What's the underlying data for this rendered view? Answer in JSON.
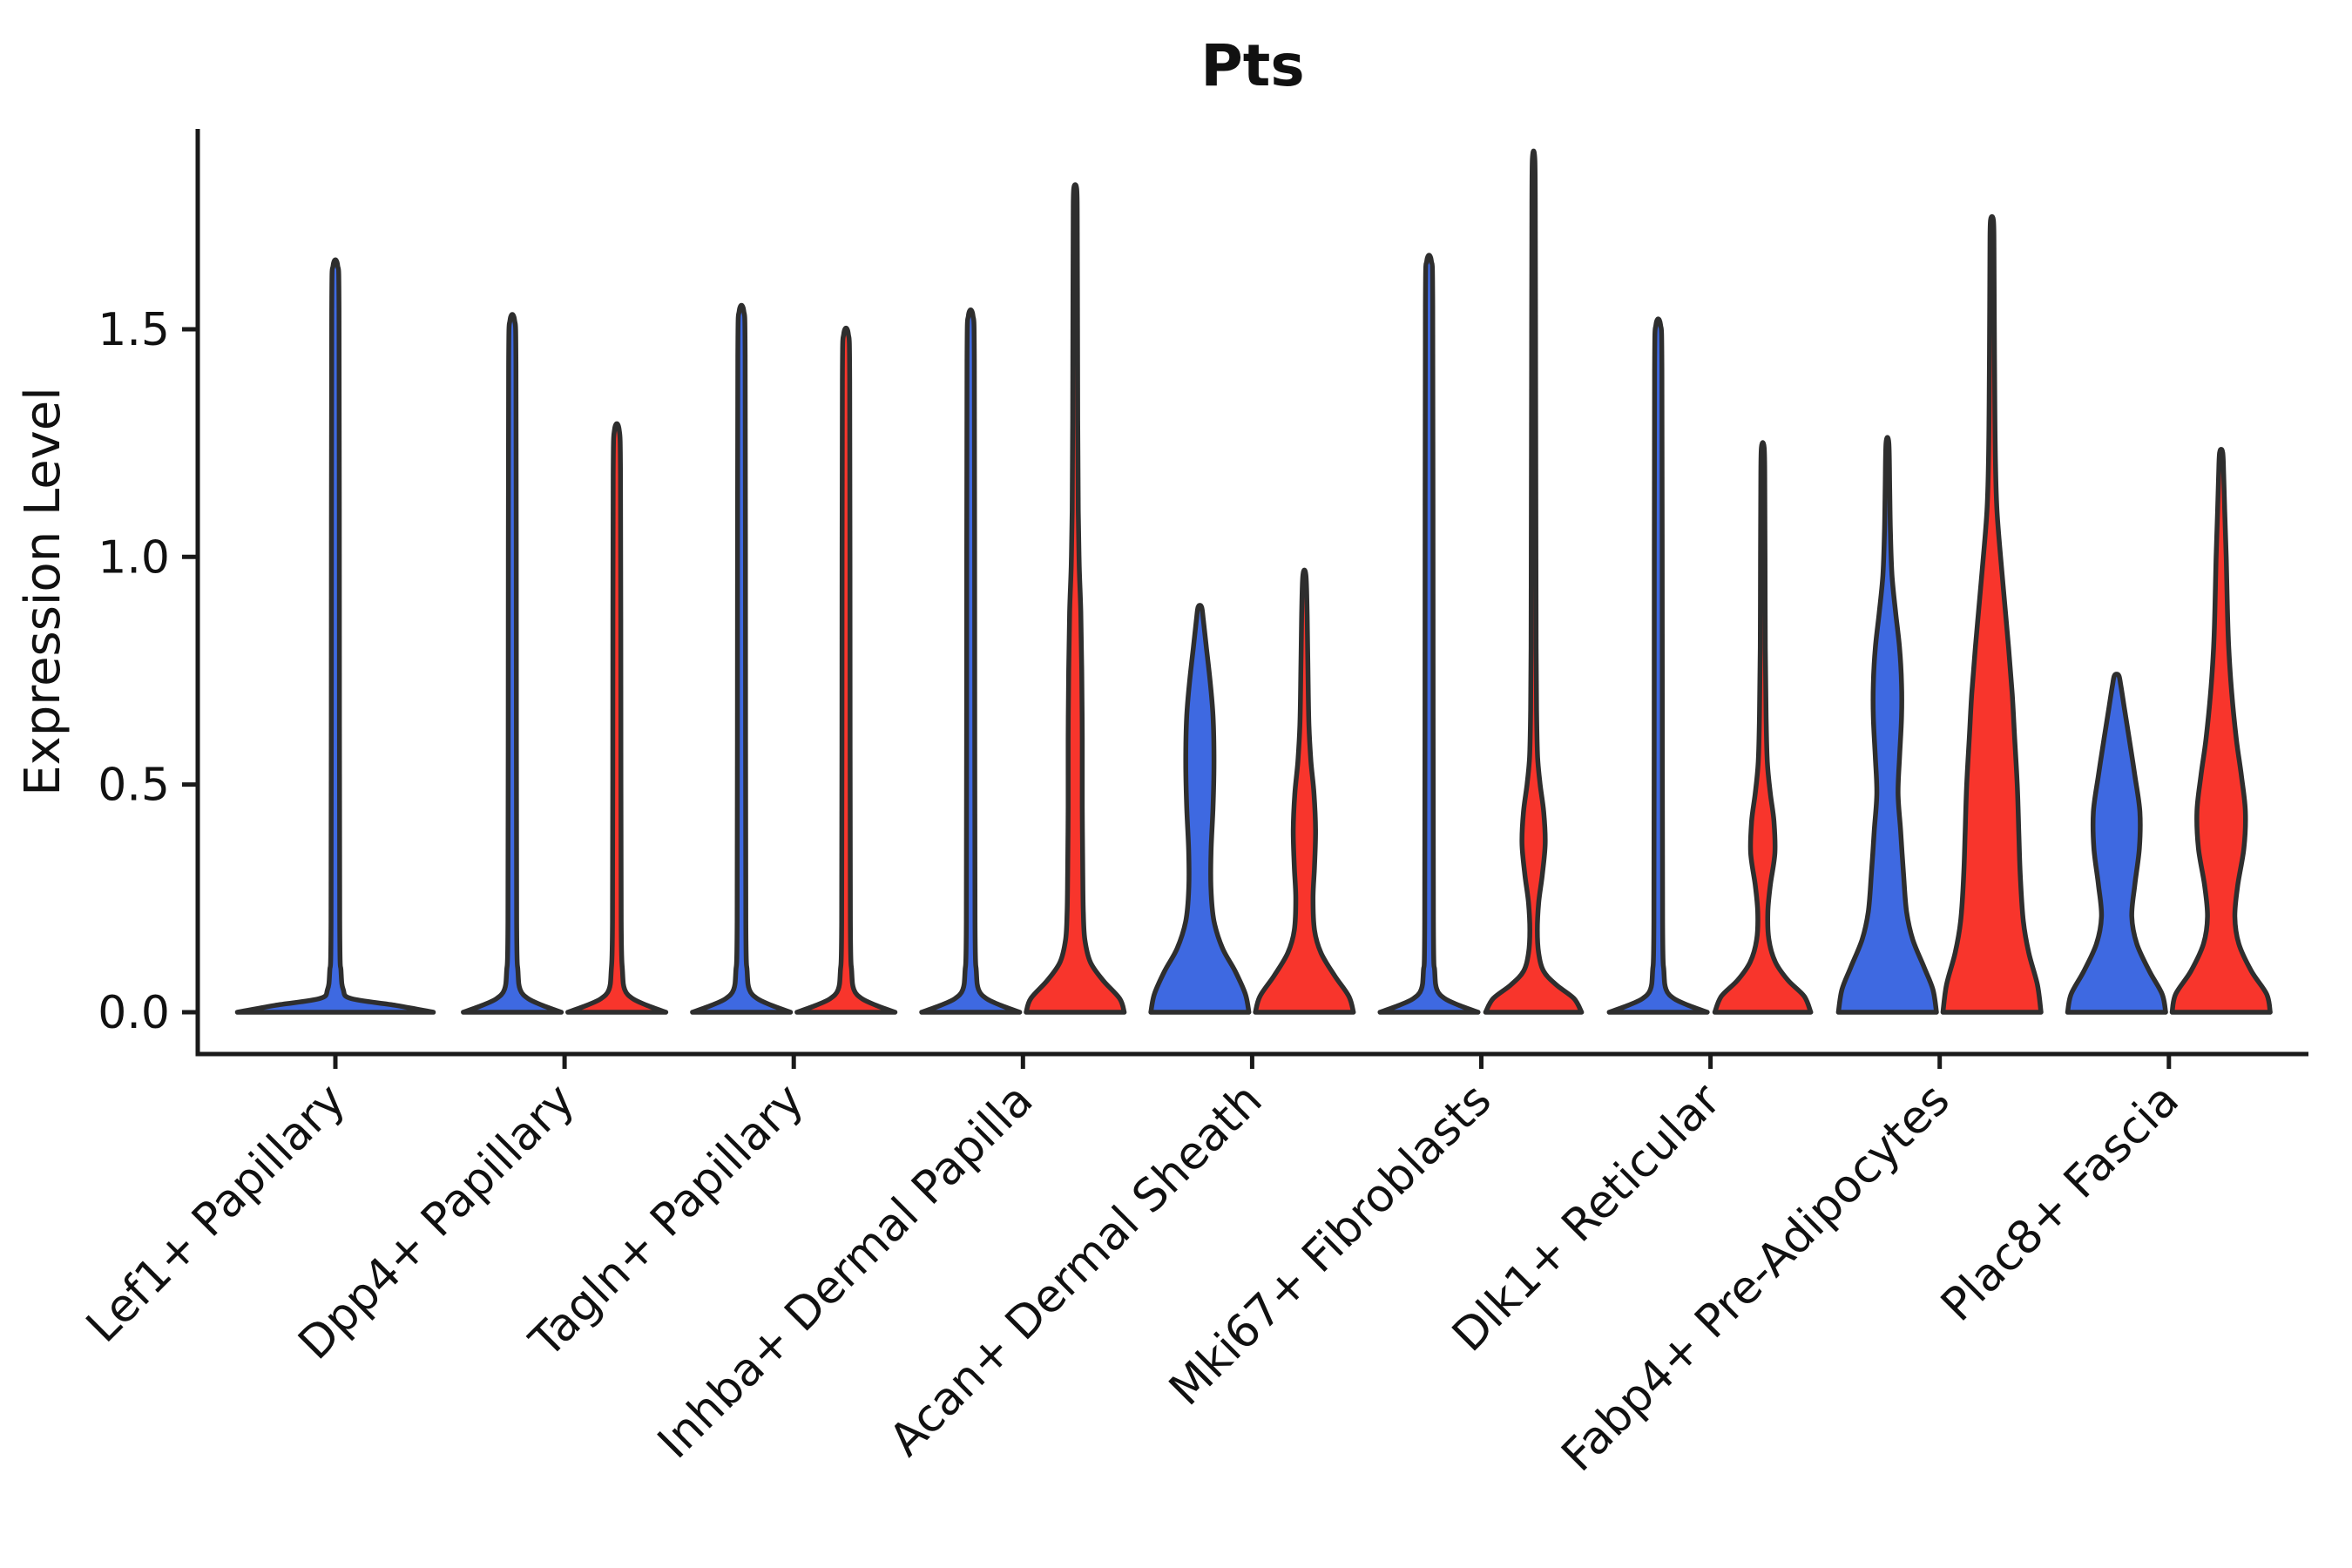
{
  "title": "Pts",
  "y_axis": {
    "label": "Expression Level",
    "ticks": [
      "0.0",
      "0.5",
      "1.0",
      "1.5"
    ],
    "tick_values": [
      0.0,
      0.5,
      1.0,
      1.5
    ]
  },
  "x_axis": {
    "categories": [
      "Lef1+ Papillary",
      "Dpp4+ Papillary",
      "Tagln+ Papillary",
      "Inhba+ Dermal Papilla",
      "Acan+ Dermal Sheath",
      "Mki67+ Fibroblasts",
      "Dlk1+ Reticular",
      "Fabp4+ Pre-Adipocytes",
      "Plac8+ Fascia"
    ],
    "label_rotation_deg": 45
  },
  "colors": {
    "blue": "#3E69E1",
    "red": "#F8352C",
    "outline": "#2E2E2E",
    "axis": "#1A1A1A"
  },
  "chart_data": {
    "type": "violin",
    "title": "Pts",
    "xlabel": "",
    "ylabel": "Expression Level",
    "ylim": [
      -0.09,
      1.94
    ],
    "grid": false,
    "legend": "none",
    "description": "Split (dodged) violin plot of Pts expression per cell population; two conditions per category (left=blue, right=red). Profiles are [expression_value, half_width_fraction] pairs.",
    "groups": [
      {
        "category": "Lef1+ Papillary",
        "violins": [
          {
            "side": "single",
            "color": "blue",
            "max": 1.64,
            "shape": "spike"
          }
        ]
      },
      {
        "category": "Dpp4+ Papillary",
        "violins": [
          {
            "side": "left",
            "color": "blue",
            "max": 1.52,
            "shape": "spike"
          },
          {
            "side": "right",
            "color": "red",
            "max": 1.28,
            "shape": "spike"
          }
        ]
      },
      {
        "category": "Tagln+ Papillary",
        "violins": [
          {
            "side": "left",
            "color": "blue",
            "max": 1.54,
            "shape": "spike"
          },
          {
            "side": "right",
            "color": "red",
            "max": 1.49,
            "shape": "spike"
          }
        ]
      },
      {
        "category": "Inhba+ Dermal Papilla",
        "violins": [
          {
            "side": "left",
            "color": "blue",
            "max": 1.53,
            "shape": "spike"
          },
          {
            "side": "right",
            "color": "red",
            "max": 1.81,
            "shape": "body",
            "profile": [
              [
                0,
                0.97
              ],
              [
                0.03,
                0.88
              ],
              [
                0.07,
                0.55
              ],
              [
                0.11,
                0.3
              ],
              [
                0.16,
                0.19
              ],
              [
                0.22,
                0.16
              ],
              [
                0.3,
                0.15
              ],
              [
                0.45,
                0.14
              ],
              [
                0.6,
                0.14
              ],
              [
                0.75,
                0.13
              ],
              [
                0.88,
                0.11
              ],
              [
                0.98,
                0.08
              ],
              [
                1.1,
                0.06
              ],
              [
                1.3,
                0.05
              ],
              [
                1.55,
                0.045
              ],
              [
                1.75,
                0.04
              ],
              [
                1.81,
                0.028
              ]
            ]
          }
        ]
      },
      {
        "category": "Acan+ Dermal Sheath",
        "violins": [
          {
            "side": "left",
            "color": "blue",
            "max": 0.89,
            "shape": "body",
            "profile": [
              [
                0,
                0.97
              ],
              [
                0.04,
                0.9
              ],
              [
                0.09,
                0.7
              ],
              [
                0.14,
                0.45
              ],
              [
                0.2,
                0.28
              ],
              [
                0.27,
                0.22
              ],
              [
                0.35,
                0.22
              ],
              [
                0.45,
                0.26
              ],
              [
                0.55,
                0.28
              ],
              [
                0.65,
                0.26
              ],
              [
                0.73,
                0.2
              ],
              [
                0.8,
                0.13
              ],
              [
                0.86,
                0.07
              ],
              [
                0.89,
                0.035
              ]
            ]
          },
          {
            "side": "right",
            "color": "red",
            "max": 0.96,
            "shape": "body",
            "profile": [
              [
                0,
                0.97
              ],
              [
                0.035,
                0.88
              ],
              [
                0.08,
                0.6
              ],
              [
                0.13,
                0.33
              ],
              [
                0.18,
                0.2
              ],
              [
                0.25,
                0.17
              ],
              [
                0.32,
                0.2
              ],
              [
                0.4,
                0.22
              ],
              [
                0.48,
                0.19
              ],
              [
                0.55,
                0.13
              ],
              [
                0.63,
                0.09
              ],
              [
                0.75,
                0.07
              ],
              [
                0.87,
                0.055
              ],
              [
                0.96,
                0.03
              ]
            ]
          }
        ]
      },
      {
        "category": "Mki67+ Fibroblasts",
        "violins": [
          {
            "side": "left",
            "color": "blue",
            "max": 1.65,
            "shape": "spike"
          },
          {
            "side": "right",
            "color": "red",
            "max": 1.87,
            "shape": "body",
            "profile": [
              [
                0,
                0.95
              ],
              [
                0.03,
                0.8
              ],
              [
                0.06,
                0.45
              ],
              [
                0.09,
                0.2
              ],
              [
                0.13,
                0.1
              ],
              [
                0.18,
                0.075
              ],
              [
                0.24,
                0.1
              ],
              [
                0.3,
                0.17
              ],
              [
                0.37,
                0.23
              ],
              [
                0.44,
                0.2
              ],
              [
                0.5,
                0.13
              ],
              [
                0.56,
                0.08
              ],
              [
                0.65,
                0.06
              ],
              [
                0.8,
                0.05
              ],
              [
                1.1,
                0.045
              ],
              [
                1.4,
                0.04
              ],
              [
                1.7,
                0.035
              ],
              [
                1.87,
                0.025
              ]
            ]
          }
        ]
      },
      {
        "category": "Dlk1+ Reticular",
        "violins": [
          {
            "side": "left",
            "color": "blue",
            "max": 1.51,
            "shape": "spike"
          },
          {
            "side": "right",
            "color": "red",
            "max": 1.24,
            "shape": "body",
            "profile": [
              [
                0,
                0.95
              ],
              [
                0.035,
                0.82
              ],
              [
                0.07,
                0.5
              ],
              [
                0.11,
                0.25
              ],
              [
                0.16,
                0.12
              ],
              [
                0.22,
                0.1
              ],
              [
                0.28,
                0.15
              ],
              [
                0.35,
                0.24
              ],
              [
                0.42,
                0.22
              ],
              [
                0.48,
                0.15
              ],
              [
                0.55,
                0.09
              ],
              [
                0.65,
                0.065
              ],
              [
                0.8,
                0.05
              ],
              [
                1.0,
                0.045
              ],
              [
                1.15,
                0.04
              ],
              [
                1.24,
                0.028
              ]
            ]
          }
        ]
      },
      {
        "category": "Fabp4+ Pre-Adipocytes",
        "violins": [
          {
            "side": "left",
            "color": "blue",
            "max": 1.25,
            "shape": "body",
            "profile": [
              [
                0,
                0.97
              ],
              [
                0.05,
                0.9
              ],
              [
                0.1,
                0.72
              ],
              [
                0.16,
                0.5
              ],
              [
                0.22,
                0.38
              ],
              [
                0.3,
                0.32
              ],
              [
                0.4,
                0.26
              ],
              [
                0.48,
                0.21
              ],
              [
                0.56,
                0.24
              ],
              [
                0.65,
                0.28
              ],
              [
                0.72,
                0.28
              ],
              [
                0.8,
                0.24
              ],
              [
                0.88,
                0.16
              ],
              [
                0.96,
                0.09
              ],
              [
                1.05,
                0.06
              ],
              [
                1.15,
                0.045
              ],
              [
                1.25,
                0.028
              ]
            ]
          },
          {
            "side": "right",
            "color": "red",
            "max": 1.74,
            "shape": "body",
            "profile": [
              [
                0,
                0.97
              ],
              [
                0.06,
                0.9
              ],
              [
                0.13,
                0.73
              ],
              [
                0.2,
                0.62
              ],
              [
                0.3,
                0.56
              ],
              [
                0.4,
                0.53
              ],
              [
                0.5,
                0.5
              ],
              [
                0.6,
                0.45
              ],
              [
                0.7,
                0.4
              ],
              [
                0.8,
                0.33
              ],
              [
                0.9,
                0.25
              ],
              [
                1.0,
                0.17
              ],
              [
                1.1,
                0.1
              ],
              [
                1.2,
                0.07
              ],
              [
                1.35,
                0.055
              ],
              [
                1.55,
                0.045
              ],
              [
                1.68,
                0.04
              ],
              [
                1.74,
                0.028
              ]
            ]
          }
        ]
      },
      {
        "category": "Plac8+ Fascia",
        "violins": [
          {
            "side": "left",
            "color": "blue",
            "max": 0.74,
            "shape": "body",
            "profile": [
              [
                0,
                0.97
              ],
              [
                0.04,
                0.9
              ],
              [
                0.09,
                0.65
              ],
              [
                0.15,
                0.4
              ],
              [
                0.21,
                0.3
              ],
              [
                0.28,
                0.36
              ],
              [
                0.36,
                0.45
              ],
              [
                0.44,
                0.46
              ],
              [
                0.52,
                0.36
              ],
              [
                0.6,
                0.25
              ],
              [
                0.67,
                0.15
              ],
              [
                0.72,
                0.08
              ],
              [
                0.74,
                0.04
              ]
            ]
          },
          {
            "side": "right",
            "color": "red",
            "max": 1.23,
            "shape": "body",
            "profile": [
              [
                0,
                0.97
              ],
              [
                0.04,
                0.9
              ],
              [
                0.09,
                0.6
              ],
              [
                0.15,
                0.35
              ],
              [
                0.21,
                0.27
              ],
              [
                0.28,
                0.33
              ],
              [
                0.36,
                0.45
              ],
              [
                0.44,
                0.48
              ],
              [
                0.52,
                0.4
              ],
              [
                0.6,
                0.3
              ],
              [
                0.7,
                0.21
              ],
              [
                0.8,
                0.15
              ],
              [
                0.9,
                0.12
              ],
              [
                1.0,
                0.1
              ],
              [
                1.1,
                0.07
              ],
              [
                1.18,
                0.05
              ],
              [
                1.23,
                0.03
              ]
            ]
          }
        ]
      }
    ]
  }
}
